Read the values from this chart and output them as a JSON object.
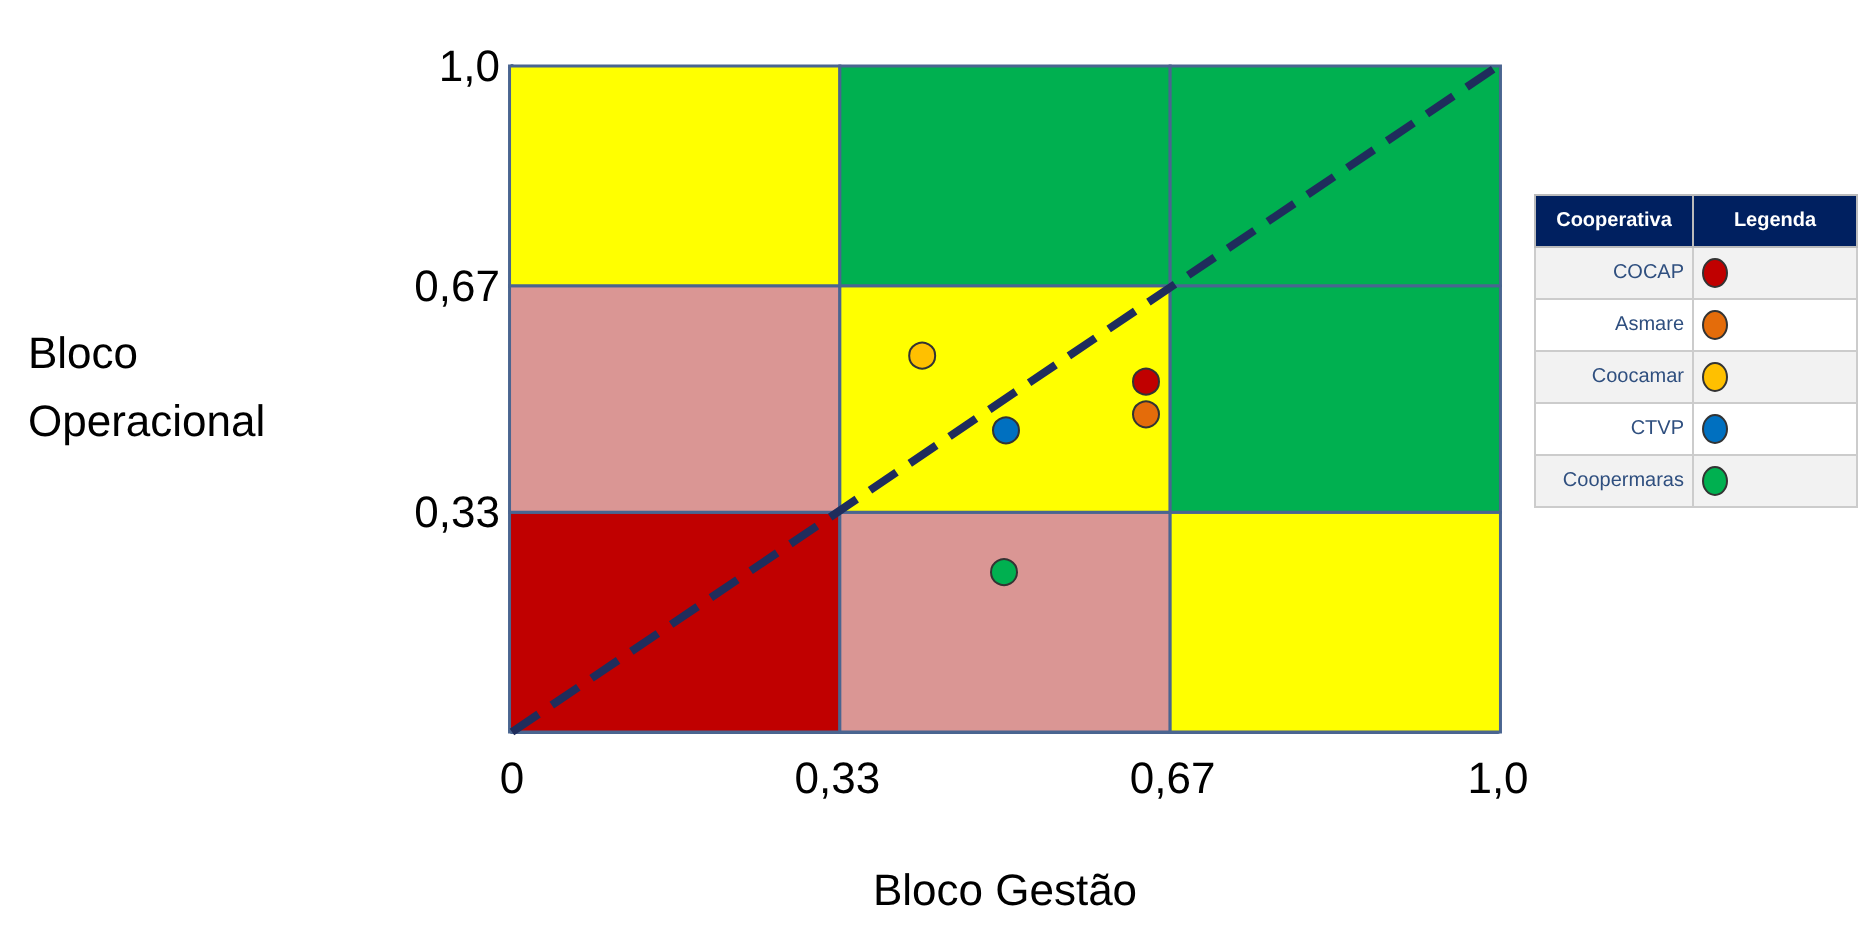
{
  "chart_data": {
    "type": "scatter",
    "xlabel": "Bloco Gestão",
    "ylabel": "Bloco\nOperacional",
    "legend_title": "Cooperativa",
    "annotations": [
      "Legenda"
    ],
    "xlim": [
      0,
      1
    ],
    "ylim": [
      0,
      1
    ],
    "xticks": [
      {
        "value": 0,
        "label": "0"
      },
      {
        "value": 0.33,
        "label": "0,33"
      },
      {
        "value": 0.67,
        "label": "0,67"
      },
      {
        "value": 1,
        "label": "1,0"
      }
    ],
    "yticks": [
      {
        "value": 0.33,
        "label": "0,33"
      },
      {
        "value": 0.67,
        "label": "0,67"
      },
      {
        "value": 1,
        "label": "1,0"
      }
    ],
    "legend": "right",
    "marker": "circle",
    "series": [
      {
        "type": "bar",
        "x": [
          0.165,
          0.5,
          0.835
        ],
        "base": [
          0,
          0,
          0
        ],
        "values": [
          0.33,
          0.33,
          0.33
        ],
        "colors": [
          "#c00000",
          "#da9694",
          "#ffff00"
        ]
      },
      {
        "type": "bar",
        "x": [
          0.165,
          0.5,
          0.835
        ],
        "base": [
          0.33,
          0.33,
          0.33
        ],
        "values": [
          0.34,
          0.34,
          0.34
        ],
        "colors": [
          "#da9694",
          "#ffff00",
          "#00b050"
        ]
      },
      {
        "type": "bar",
        "x": [
          0.165,
          0.5,
          0.835
        ],
        "base": [
          0.67,
          0.67,
          0.67
        ],
        "values": [
          0.33,
          0.33,
          0.33
        ],
        "colors": [
          "#ffff00",
          "#00b050",
          "#00b050"
        ]
      },
      {
        "type": "line",
        "x": [
          0,
          1
        ],
        "values": [
          0,
          1
        ],
        "color": "#1f2d5c",
        "line_style": "dashed",
        "marker": "none"
      },
      {
        "name": "COCAP",
        "color": "#c00000",
        "x": [
          0.643
        ],
        "values": [
          0.526
        ]
      },
      {
        "name": "Asmare",
        "color": "#e46c0a",
        "x": [
          0.643
        ],
        "values": [
          0.477
        ]
      },
      {
        "name": "Coocamar",
        "color": "#ffc000",
        "x": [
          0.416
        ],
        "values": [
          0.565
        ]
      },
      {
        "name": "CTVP",
        "color": "#0070c0",
        "x": [
          0.501
        ],
        "values": [
          0.453
        ]
      },
      {
        "name": "Coopermaras",
        "color": "#00b050",
        "x": [
          0.499
        ],
        "values": [
          0.24
        ]
      }
    ]
  }
}
